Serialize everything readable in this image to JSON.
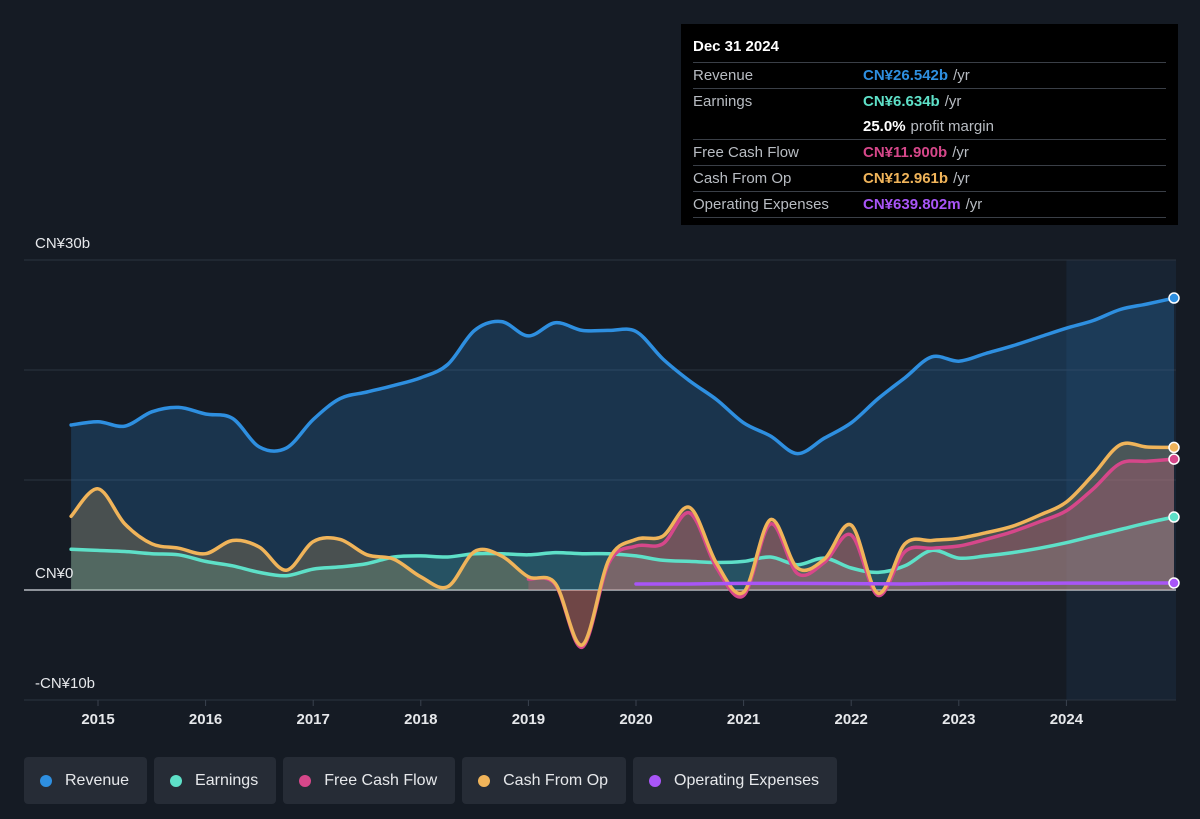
{
  "chart_data": {
    "type": "area",
    "ylim": [
      -10,
      30
    ],
    "y_tick_labels": [
      "CN¥30b",
      "CN¥0",
      "-CN¥10b"
    ],
    "x_tick_labels": [
      "2015",
      "2016",
      "2017",
      "2018",
      "2019",
      "2020",
      "2021",
      "2022",
      "2023",
      "2024"
    ],
    "x_ticks": [
      2015,
      2016,
      2017,
      2018,
      2019,
      2020,
      2021,
      2022,
      2023,
      2024
    ],
    "highlight_from": 2024.0,
    "grid": true,
    "series": [
      {
        "name": "Revenue",
        "color": "#2e8fe0",
        "x": [
          2014.75,
          2015.0,
          2015.25,
          2015.5,
          2015.75,
          2016.0,
          2016.25,
          2016.5,
          2016.75,
          2017.0,
          2017.25,
          2017.5,
          2017.75,
          2018.0,
          2018.25,
          2018.5,
          2018.75,
          2019.0,
          2019.25,
          2019.5,
          2019.75,
          2020.0,
          2020.25,
          2020.5,
          2020.75,
          2021.0,
          2021.25,
          2021.5,
          2021.75,
          2022.0,
          2022.25,
          2022.5,
          2022.75,
          2023.0,
          2023.25,
          2023.5,
          2023.75,
          2024.0,
          2024.25,
          2024.5,
          2024.75,
          2025.0
        ],
        "y": [
          15.0,
          15.3,
          14.9,
          16.2,
          16.6,
          16.0,
          15.6,
          13.0,
          12.9,
          15.5,
          17.4,
          18.0,
          18.6,
          19.3,
          20.5,
          23.6,
          24.4,
          23.1,
          24.3,
          23.6,
          23.6,
          23.5,
          21.0,
          19.0,
          17.3,
          15.2,
          14.0,
          12.4,
          13.8,
          15.2,
          17.4,
          19.3,
          21.2,
          20.8,
          21.5,
          22.2,
          23.0,
          23.8,
          24.5,
          25.5,
          26.0,
          26.542
        ]
      },
      {
        "name": "Earnings",
        "color": "#5ee0c8",
        "x": [
          2014.75,
          2015.0,
          2015.25,
          2015.5,
          2015.75,
          2016.0,
          2016.25,
          2016.5,
          2016.75,
          2017.0,
          2017.25,
          2017.5,
          2017.75,
          2018.0,
          2018.25,
          2018.5,
          2018.75,
          2019.0,
          2019.25,
          2019.5,
          2019.75,
          2020.0,
          2020.25,
          2020.5,
          2020.75,
          2021.0,
          2021.25,
          2021.5,
          2021.75,
          2022.0,
          2022.25,
          2022.5,
          2022.75,
          2023.0,
          2023.25,
          2023.5,
          2023.75,
          2024.0,
          2024.25,
          2024.5,
          2024.75,
          2025.0
        ],
        "y": [
          3.7,
          3.6,
          3.5,
          3.3,
          3.2,
          2.6,
          2.2,
          1.6,
          1.3,
          1.9,
          2.1,
          2.4,
          3.0,
          3.1,
          3.0,
          3.3,
          3.3,
          3.2,
          3.4,
          3.3,
          3.3,
          3.1,
          2.7,
          2.6,
          2.5,
          2.6,
          3.0,
          2.3,
          2.9,
          2.0,
          1.6,
          2.2,
          3.6,
          2.9,
          3.1,
          3.4,
          3.8,
          4.3,
          4.9,
          5.5,
          6.1,
          6.634
        ]
      },
      {
        "name": "Free Cash Flow",
        "color": "#d6478a",
        "x": [
          2019.0,
          2019.25,
          2019.5,
          2019.75,
          2020.0,
          2020.25,
          2020.5,
          2020.75,
          2021.0,
          2021.25,
          2021.5,
          2021.75,
          2022.0,
          2022.25,
          2022.5,
          2022.75,
          2023.0,
          2023.25,
          2023.5,
          2023.75,
          2024.0,
          2024.25,
          2024.5,
          2024.75,
          2025.0
        ],
        "y": [
          1.0,
          0.5,
          -5.2,
          2.5,
          4.0,
          4.2,
          7.0,
          2.0,
          -0.5,
          6.0,
          1.5,
          2.5,
          5.0,
          -0.5,
          3.5,
          3.8,
          4.0,
          4.6,
          5.3,
          6.2,
          7.2,
          9.2,
          11.5,
          11.7,
          11.9
        ]
      },
      {
        "name": "Cash From Op",
        "color": "#f0b45a",
        "x": [
          2014.75,
          2015.0,
          2015.25,
          2015.5,
          2015.75,
          2016.0,
          2016.25,
          2016.5,
          2016.75,
          2017.0,
          2017.25,
          2017.5,
          2017.75,
          2018.0,
          2018.25,
          2018.5,
          2018.75,
          2019.0,
          2019.25,
          2019.5,
          2019.75,
          2020.0,
          2020.25,
          2020.5,
          2020.75,
          2021.0,
          2021.25,
          2021.5,
          2021.75,
          2022.0,
          2022.25,
          2022.5,
          2022.75,
          2023.0,
          2023.25,
          2023.5,
          2023.75,
          2024.0,
          2024.25,
          2024.5,
          2024.75,
          2025.0
        ],
        "y": [
          6.7,
          9.2,
          6.0,
          4.2,
          3.8,
          3.3,
          4.5,
          3.9,
          1.8,
          4.4,
          4.6,
          3.2,
          2.8,
          1.2,
          0.3,
          3.5,
          3.1,
          1.2,
          0.6,
          -5.0,
          2.8,
          4.6,
          4.9,
          7.5,
          2.4,
          -0.2,
          6.4,
          2.0,
          2.8,
          5.9,
          -0.3,
          4.2,
          4.5,
          4.7,
          5.2,
          5.8,
          6.8,
          8.0,
          10.5,
          13.2,
          13.0,
          12.961
        ]
      },
      {
        "name": "Operating Expenses",
        "color": "#a855f7",
        "x": [
          2020.0,
          2020.5,
          2021.0,
          2021.5,
          2022.0,
          2022.5,
          2023.0,
          2023.5,
          2024.0,
          2024.5,
          2025.0
        ],
        "y": [
          0.55,
          0.55,
          0.6,
          0.6,
          0.58,
          0.55,
          0.6,
          0.6,
          0.62,
          0.63,
          0.64
        ]
      }
    ]
  },
  "tooltip": {
    "date": "Dec 31 2024",
    "rows": [
      {
        "name": "Revenue",
        "value": "CN¥26.542b",
        "unit": "/yr",
        "color": "#2e8fe0"
      },
      {
        "name": "Earnings",
        "value": "CN¥6.634b",
        "unit": "/yr",
        "color": "#5ee0c8"
      },
      {
        "name": "",
        "value": "25.0%",
        "unit": "profit margin",
        "color": "#ffffff"
      },
      {
        "name": "Free Cash Flow",
        "value": "CN¥11.900b",
        "unit": "/yr",
        "color": "#d6478a"
      },
      {
        "name": "Cash From Op",
        "value": "CN¥12.961b",
        "unit": "/yr",
        "color": "#f0b45a"
      },
      {
        "name": "Operating Expenses",
        "value": "CN¥639.802m",
        "unit": "/yr",
        "color": "#a855f7"
      }
    ]
  },
  "legend": [
    {
      "label": "Revenue",
      "color": "#2e8fe0"
    },
    {
      "label": "Earnings",
      "color": "#5ee0c8"
    },
    {
      "label": "Free Cash Flow",
      "color": "#d6478a"
    },
    {
      "label": "Cash From Op",
      "color": "#f0b45a"
    },
    {
      "label": "Operating Expenses",
      "color": "#a855f7"
    }
  ]
}
